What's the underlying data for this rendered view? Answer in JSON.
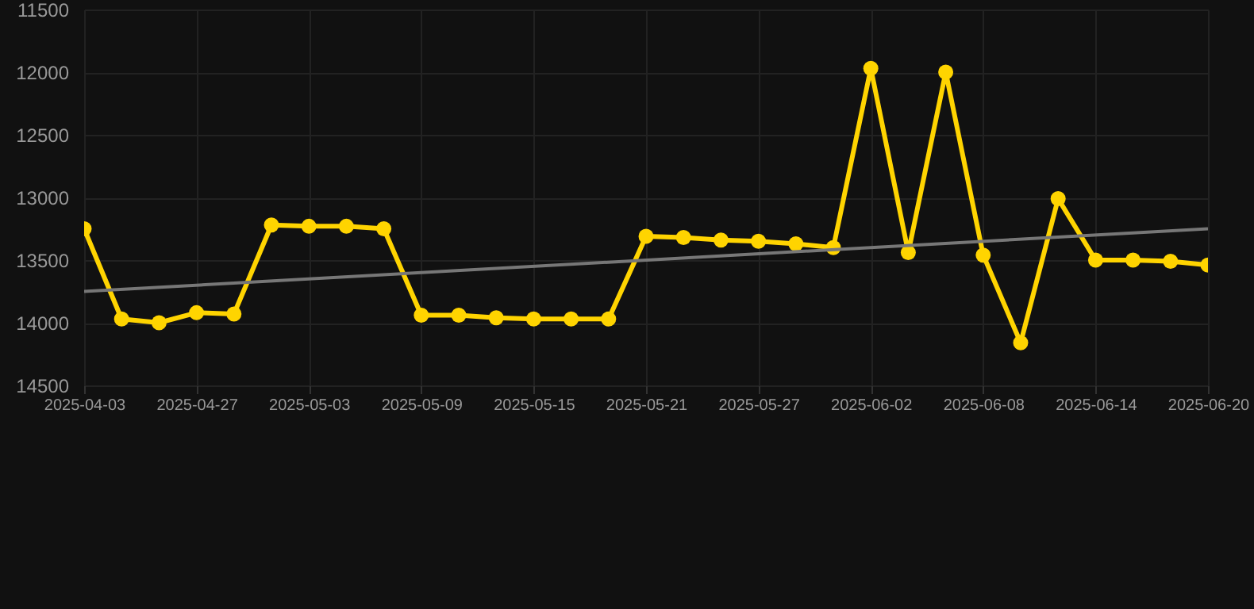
{
  "chart_data": {
    "type": "line",
    "categories": [
      "2025-04-03",
      null,
      null,
      "2025-04-27",
      null,
      null,
      "2025-05-03",
      null,
      null,
      "2025-05-09",
      null,
      null,
      "2025-05-15",
      null,
      null,
      "2025-05-21",
      null,
      null,
      "2025-05-27",
      null,
      null,
      "2025-06-02",
      null,
      null,
      "2025-06-08",
      null,
      null,
      "2025-06-14",
      null,
      null,
      "2025-06-20"
    ],
    "series": [
      {
        "color": "#ffd400",
        "values": [
          13250,
          13970,
          14000,
          13920,
          13930,
          13220,
          13230,
          13230,
          13250,
          13940,
          13940,
          13960,
          13970,
          13970,
          13970,
          13310,
          13320,
          13340,
          13350,
          13370,
          13400,
          11970,
          13440,
          12000,
          13460,
          14160,
          13010,
          13500,
          13500,
          13510,
          13540
        ]
      },
      {
        "type": "line",
        "color": "#777777",
        "marker": "none",
        "values": [
          13750,
          null,
          null,
          null,
          null,
          null,
          null,
          null,
          null,
          null,
          null,
          null,
          null,
          null,
          null,
          null,
          null,
          null,
          null,
          null,
          null,
          null,
          null,
          null,
          null,
          null,
          null,
          null,
          null,
          null,
          13250
        ]
      }
    ],
    "ylim": [
      14500,
      11500
    ],
    "yticks": [
      11500,
      12000,
      12500,
      13000,
      13500,
      14000,
      14500
    ],
    "grid": true,
    "marker": "circle"
  }
}
